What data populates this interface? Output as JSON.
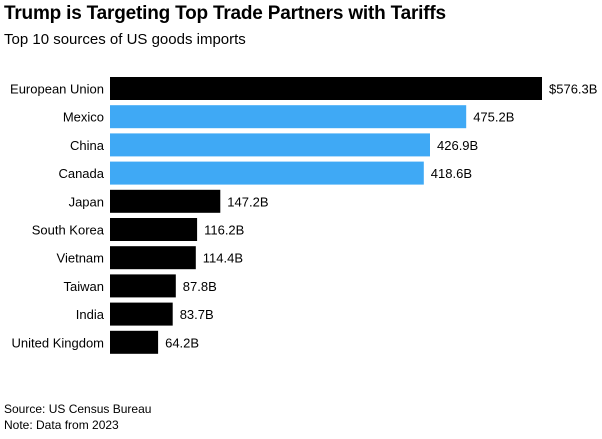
{
  "chart_data": {
    "type": "bar",
    "orientation": "horizontal",
    "title": "Trump is Targeting Top Trade Partners with Tariffs",
    "subtitle": "Top 10 sources of US goods imports",
    "categories": [
      "European Union",
      "Mexico",
      "China",
      "Canada",
      "Japan",
      "South Korea",
      "Vietnam",
      "Taiwan",
      "India",
      "United Kingdom"
    ],
    "values": [
      576.3,
      475.2,
      426.9,
      418.6,
      147.2,
      116.2,
      114.4,
      87.8,
      83.7,
      64.2
    ],
    "value_labels": [
      "$576.3B",
      "475.2B",
      "426.9B",
      "418.6B",
      "147.2B",
      "116.2B",
      "114.4B",
      "87.8B",
      "83.7B",
      "64.2B"
    ],
    "highlighted": [
      false,
      true,
      true,
      true,
      false,
      false,
      false,
      false,
      false,
      false
    ],
    "colors": {
      "default": "#000000",
      "highlight": "#3fa9f5"
    },
    "xlim": [
      0,
      576.3
    ],
    "grid": false,
    "legend": "none"
  },
  "footer": {
    "source": "Source: US Census Bureau",
    "note": "Note: Data from 2023"
  }
}
